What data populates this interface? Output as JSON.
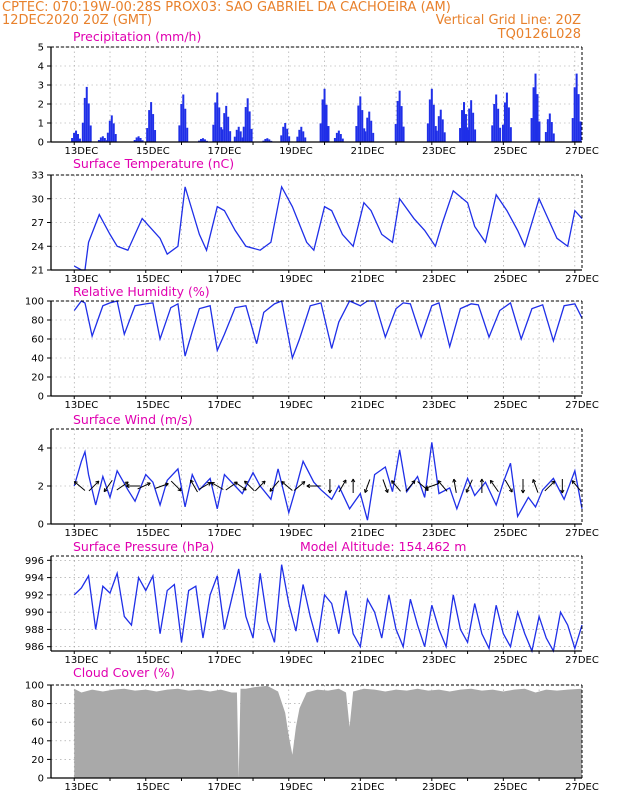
{
  "header": {
    "line1": "CPTEC:   070:19W-00:28S   PROX03: SAO GABRIEL DA CACHOEIRA (AM)",
    "line2_left": "12DEC2020 20Z (GMT)",
    "line2_right": "Vertical Grid Line: 20Z",
    "line3_right": "TQ0126L028"
  },
  "colors": {
    "header": "#e8812c",
    "title": "#e000b0",
    "series": "#1f2fe8",
    "cloud": "#a9a9a9",
    "grid": "#9a9a9a"
  },
  "x_axis_labels": [
    "13DEC",
    "15DEC",
    "17DEC",
    "19DEC",
    "21DEC",
    "23DEC",
    "25DEC",
    "27DEC"
  ],
  "chart_data": [
    {
      "type": "bar",
      "title": "Precipitation (mm/h)",
      "ylim": [
        0,
        5
      ],
      "yticks": [
        0,
        1,
        2,
        3,
        4,
        5
      ],
      "x_range_days": [
        12.8,
        27.0
      ],
      "grid": true,
      "bursts": [
        {
          "day": 12.85,
          "peak": 0.6
        },
        {
          "day": 13.15,
          "peak": 2.9
        },
        {
          "day": 13.6,
          "peak": 0.3
        },
        {
          "day": 13.85,
          "peak": 1.4
        },
        {
          "day": 14.6,
          "peak": 0.3
        },
        {
          "day": 14.95,
          "peak": 2.1
        },
        {
          "day": 15.85,
          "peak": 2.5
        },
        {
          "day": 16.4,
          "peak": 0.2
        },
        {
          "day": 16.8,
          "peak": 2.6
        },
        {
          "day": 17.05,
          "peak": 1.9
        },
        {
          "day": 17.4,
          "peak": 0.8
        },
        {
          "day": 17.65,
          "peak": 2.3
        },
        {
          "day": 18.2,
          "peak": 0.2
        },
        {
          "day": 18.7,
          "peak": 1.0
        },
        {
          "day": 19.15,
          "peak": 0.8
        },
        {
          "day": 19.8,
          "peak": 2.8
        },
        {
          "day": 20.2,
          "peak": 0.6
        },
        {
          "day": 20.8,
          "peak": 2.4
        },
        {
          "day": 21.05,
          "peak": 1.6
        },
        {
          "day": 21.9,
          "peak": 2.7
        },
        {
          "day": 22.8,
          "peak": 2.8
        },
        {
          "day": 23.05,
          "peak": 1.7
        },
        {
          "day": 23.7,
          "peak": 2.1
        },
        {
          "day": 23.9,
          "peak": 2.2
        },
        {
          "day": 24.6,
          "peak": 2.5
        },
        {
          "day": 24.9,
          "peak": 2.6
        },
        {
          "day": 25.7,
          "peak": 3.6
        },
        {
          "day": 26.1,
          "peak": 1.5
        },
        {
          "day": 26.85,
          "peak": 3.6
        }
      ]
    },
    {
      "type": "line",
      "title": "Surface Temperature (nC)",
      "ylim": [
        21,
        33
      ],
      "yticks": [
        21,
        24,
        27,
        30,
        33
      ],
      "grid": true,
      "x": [
        12.8,
        13.0,
        13.1,
        13.2,
        13.5,
        13.8,
        14.0,
        14.3,
        14.7,
        14.9,
        15.2,
        15.4,
        15.7,
        15.9,
        16.3,
        16.5,
        16.8,
        17.0,
        17.3,
        17.6,
        18.0,
        18.3,
        18.6,
        18.9,
        19.3,
        19.5,
        19.8,
        20.0,
        20.3,
        20.6,
        20.9,
        21.1,
        21.4,
        21.7,
        21.9,
        22.3,
        22.6,
        22.9,
        23.1,
        23.4,
        23.8,
        24.0,
        24.3,
        24.6,
        24.9,
        25.2,
        25.4,
        25.8,
        26.0,
        26.3,
        26.6,
        26.8,
        27.0
      ],
      "y": [
        21.5,
        21.0,
        21.0,
        24.5,
        28.0,
        25.5,
        24.0,
        23.5,
        27.5,
        26.5,
        25.0,
        23.0,
        24.0,
        31.5,
        25.5,
        23.5,
        29.0,
        28.5,
        26.0,
        24.0,
        23.5,
        24.5,
        31.5,
        29.0,
        24.5,
        23.5,
        29.0,
        28.5,
        25.5,
        24.0,
        29.5,
        28.5,
        25.5,
        24.5,
        30.0,
        27.5,
        26.0,
        24.0,
        27.0,
        31.0,
        29.5,
        26.5,
        24.5,
        30.5,
        28.5,
        26.0,
        24.0,
        30.0,
        28.0,
        25.0,
        24.0,
        28.5,
        27.5
      ]
    },
    {
      "type": "line",
      "title": "Relative Humidity (%)",
      "ylim": [
        0,
        100
      ],
      "yticks": [
        0,
        20,
        40,
        60,
        80,
        100
      ],
      "grid": true,
      "x": [
        12.8,
        13.0,
        13.1,
        13.3,
        13.6,
        13.8,
        14.0,
        14.2,
        14.5,
        14.8,
        15.0,
        15.2,
        15.5,
        15.7,
        15.9,
        16.1,
        16.3,
        16.6,
        16.8,
        17.0,
        17.3,
        17.6,
        17.9,
        18.1,
        18.4,
        18.6,
        18.9,
        19.1,
        19.4,
        19.7,
        20.0,
        20.2,
        20.5,
        20.8,
        21.0,
        21.2,
        21.5,
        21.8,
        22.0,
        22.2,
        22.5,
        22.8,
        23.0,
        23.3,
        23.6,
        23.9,
        24.1,
        24.4,
        24.7,
        25.0,
        25.3,
        25.6,
        25.9,
        26.2,
        26.5,
        26.8,
        27.0
      ],
      "y": [
        90,
        100,
        98,
        63,
        95,
        98,
        100,
        65,
        95,
        97,
        98,
        60,
        93,
        97,
        42,
        68,
        92,
        95,
        48,
        65,
        93,
        95,
        55,
        88,
        97,
        100,
        40,
        60,
        95,
        98,
        50,
        78,
        100,
        95,
        100,
        100,
        62,
        92,
        98,
        97,
        62,
        95,
        98,
        52,
        92,
        97,
        96,
        62,
        90,
        98,
        60,
        92,
        96,
        58,
        95,
        97,
        82
      ]
    },
    {
      "type": "line",
      "title": "Surface Wind (m/s)",
      "ylim": [
        0,
        5
      ],
      "yticks": [
        0,
        2,
        4
      ],
      "grid": true,
      "x": [
        12.8,
        13.0,
        13.1,
        13.2,
        13.4,
        13.6,
        13.8,
        14.0,
        14.3,
        14.5,
        14.8,
        15.0,
        15.2,
        15.4,
        15.7,
        15.9,
        16.1,
        16.3,
        16.6,
        16.8,
        17.0,
        17.2,
        17.5,
        17.8,
        18.0,
        18.3,
        18.5,
        18.8,
        19.0,
        19.2,
        19.5,
        19.7,
        20.0,
        20.2,
        20.5,
        20.8,
        21.0,
        21.2,
        21.5,
        21.7,
        21.9,
        22.1,
        22.4,
        22.6,
        22.8,
        23.0,
        23.3,
        23.5,
        23.8,
        24.0,
        24.3,
        24.6,
        24.8,
        25.0,
        25.2,
        25.5,
        25.7,
        25.9,
        26.2,
        26.5,
        26.8,
        27.0
      ],
      "y": [
        2.0,
        3.3,
        3.8,
        2.6,
        1.0,
        2.5,
        1.4,
        2.8,
        1.8,
        1.2,
        2.6,
        2.2,
        1.0,
        2.3,
        2.9,
        0.9,
        2.6,
        1.8,
        2.4,
        0.8,
        2.6,
        2.2,
        1.6,
        2.7,
        2.0,
        1.3,
        2.9,
        0.6,
        1.9,
        3.3,
        2.2,
        1.8,
        1.3,
        2.0,
        0.8,
        1.6,
        0.2,
        2.6,
        3.0,
        1.7,
        3.9,
        1.7,
        2.5,
        1.4,
        4.3,
        1.6,
        1.9,
        0.8,
        2.4,
        1.5,
        2.2,
        1.0,
        2.2,
        3.2,
        0.4,
        1.4,
        0.9,
        1.8,
        2.4,
        1.3,
        2.8,
        0.8
      ],
      "vectors": [
        {
          "day": 12.95,
          "dir": -140
        },
        {
          "day": 13.35,
          "dir": -45
        },
        {
          "day": 13.75,
          "dir": 125
        },
        {
          "day": 14.15,
          "dir": -35
        },
        {
          "day": 14.45,
          "dir": 180
        },
        {
          "day": 14.75,
          "dir": -25
        },
        {
          "day": 15.25,
          "dir": -20
        },
        {
          "day": 15.65,
          "dir": 45
        },
        {
          "day": 16.15,
          "dir": -120
        },
        {
          "day": 16.45,
          "dir": -30
        },
        {
          "day": 16.8,
          "dir": -150
        },
        {
          "day": 17.2,
          "dir": -35
        },
        {
          "day": 17.45,
          "dir": 35
        },
        {
          "day": 17.7,
          "dir": -135
        },
        {
          "day": 18.0,
          "dir": -45
        },
        {
          "day": 18.4,
          "dir": 130
        },
        {
          "day": 18.75,
          "dir": -140
        },
        {
          "day": 19.1,
          "dir": -40
        },
        {
          "day": 19.5,
          "dir": 180
        },
        {
          "day": 19.95,
          "dir": 90
        },
        {
          "day": 20.3,
          "dir": -60
        },
        {
          "day": 20.6,
          "dir": -90
        },
        {
          "day": 21.0,
          "dir": 110
        },
        {
          "day": 21.5,
          "dir": 70
        },
        {
          "day": 21.8,
          "dir": -130
        },
        {
          "day": 22.2,
          "dir": -50
        },
        {
          "day": 22.55,
          "dir": 40
        },
        {
          "day": 22.8,
          "dir": 160
        },
        {
          "day": 23.1,
          "dir": -130
        },
        {
          "day": 23.45,
          "dir": -100
        },
        {
          "day": 23.85,
          "dir": 115
        },
        {
          "day": 24.2,
          "dir": -90
        },
        {
          "day": 24.55,
          "dir": -125
        },
        {
          "day": 24.95,
          "dir": 60
        },
        {
          "day": 25.35,
          "dir": 90
        },
        {
          "day": 25.7,
          "dir": -110
        },
        {
          "day": 26.1,
          "dir": -45
        },
        {
          "day": 26.45,
          "dir": 90
        },
        {
          "day": 26.85,
          "dir": -130
        }
      ]
    },
    {
      "type": "line",
      "title": "Surface Pressure (hPa)",
      "annotation": "Model Altitude: 154.462 m",
      "ylim": [
        985.5,
        996.5
      ],
      "yticks": [
        986,
        988,
        990,
        992,
        994,
        996
      ],
      "grid": true,
      "x": [
        12.8,
        13.0,
        13.2,
        13.4,
        13.6,
        13.8,
        14.0,
        14.2,
        14.4,
        14.6,
        14.8,
        15.0,
        15.2,
        15.4,
        15.6,
        15.8,
        16.0,
        16.2,
        16.4,
        16.6,
        16.8,
        17.0,
        17.2,
        17.4,
        17.6,
        17.8,
        18.0,
        18.2,
        18.4,
        18.6,
        18.8,
        19.0,
        19.2,
        19.4,
        19.6,
        19.8,
        20.0,
        20.2,
        20.4,
        20.6,
        20.8,
        21.0,
        21.2,
        21.4,
        21.6,
        21.8,
        22.0,
        22.2,
        22.4,
        22.6,
        22.8,
        23.0,
        23.2,
        23.4,
        23.6,
        23.8,
        24.0,
        24.2,
        24.4,
        24.6,
        24.8,
        25.0,
        25.2,
        25.4,
        25.6,
        25.8,
        26.0,
        26.2,
        26.4,
        26.6,
        26.8,
        27.0
      ],
      "y": [
        992.0,
        992.8,
        994.2,
        988.0,
        993.0,
        992.2,
        994.5,
        989.5,
        988.5,
        994.0,
        992.5,
        994.2,
        987.5,
        992.5,
        993.2,
        986.5,
        992.5,
        993.0,
        987.0,
        992.0,
        994.2,
        988.0,
        991.5,
        995.0,
        989.5,
        987.0,
        994.5,
        989.0,
        986.5,
        995.5,
        991.0,
        987.8,
        993.2,
        989.5,
        986.5,
        992.0,
        991.0,
        987.5,
        992.5,
        987.5,
        986.0,
        991.5,
        990.0,
        987.0,
        992.0,
        988.0,
        986.0,
        991.5,
        988.5,
        986.0,
        990.8,
        988.0,
        986.0,
        992.0,
        988.0,
        986.5,
        991.0,
        987.5,
        985.8,
        990.8,
        987.5,
        986.0,
        990.0,
        987.5,
        985.5,
        989.5,
        987.0,
        985.5,
        990.0,
        988.5,
        985.8,
        988.5
      ]
    },
    {
      "type": "area",
      "title": "Cloud Cover (%)",
      "ylim": [
        0,
        100
      ],
      "yticks": [
        0,
        20,
        40,
        60,
        80,
        100
      ],
      "grid": true,
      "x": [
        12.8,
        13.0,
        13.3,
        13.6,
        13.9,
        14.2,
        14.5,
        14.8,
        15.1,
        15.4,
        15.7,
        16.0,
        16.3,
        16.6,
        16.9,
        17.2,
        17.35,
        17.4,
        17.45,
        17.6,
        17.9,
        18.2,
        18.5,
        18.7,
        18.8,
        18.9,
        19.0,
        19.1,
        19.3,
        19.6,
        19.9,
        20.2,
        20.4,
        20.5,
        20.6,
        20.9,
        21.2,
        21.5,
        21.8,
        22.1,
        22.4,
        22.7,
        23.0,
        23.3,
        23.6,
        23.9,
        24.2,
        24.5,
        24.8,
        25.1,
        25.4,
        25.7,
        26.0,
        26.3,
        26.6,
        27.0
      ],
      "y": [
        96,
        92,
        95,
        93,
        95,
        96,
        94,
        95,
        93,
        95,
        96,
        94,
        95,
        93,
        95,
        92,
        92,
        0,
        96,
        96,
        98,
        99,
        93,
        70,
        45,
        25,
        55,
        75,
        92,
        95,
        94,
        96,
        92,
        55,
        93,
        96,
        95,
        93,
        95,
        94,
        96,
        94,
        95,
        93,
        95,
        96,
        94,
        95,
        93,
        95,
        96,
        92,
        95,
        94,
        95,
        96
      ]
    }
  ]
}
